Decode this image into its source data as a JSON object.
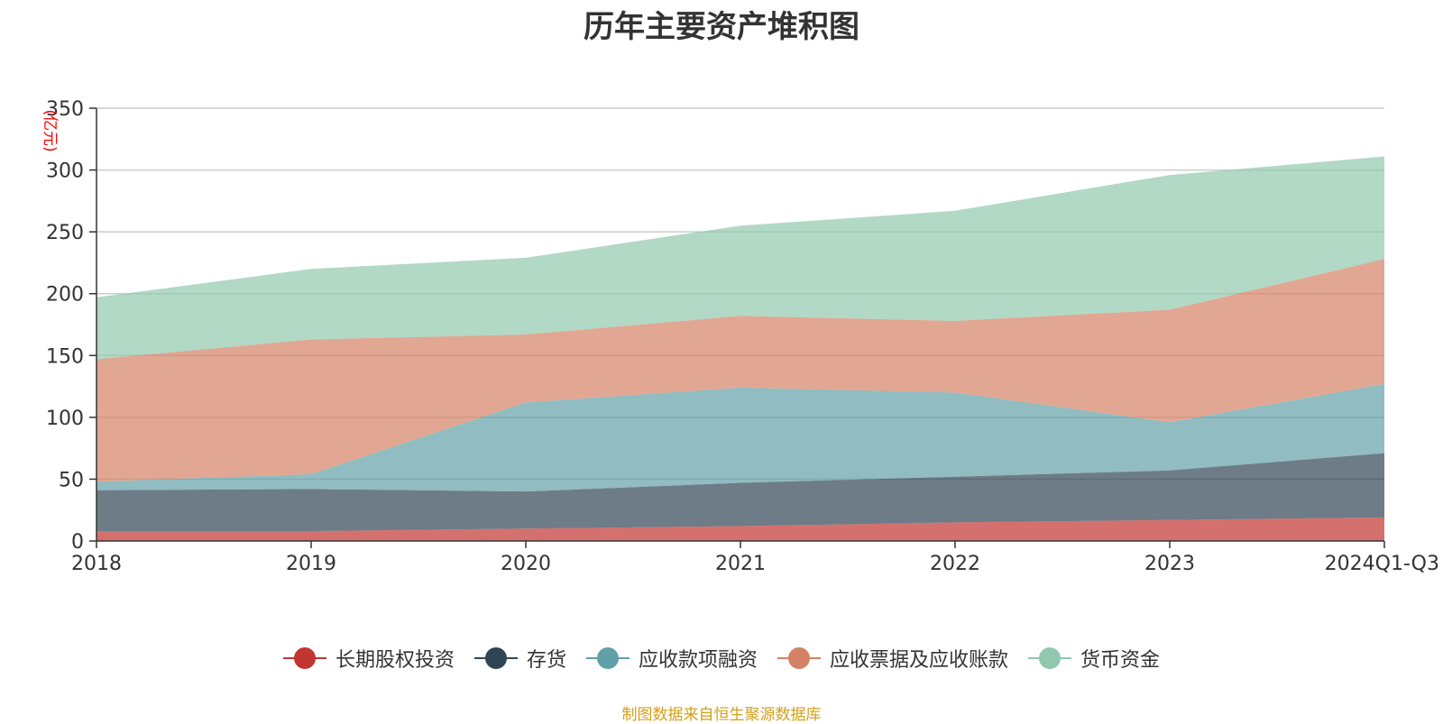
{
  "chart_data": {
    "type": "area",
    "title": "历年主要资产堆积图",
    "ylabel": "(亿元)",
    "xlabel": "",
    "categories": [
      "2018",
      "2019",
      "2020",
      "2021",
      "2022",
      "2023",
      "2024Q1-Q3"
    ],
    "ylim": [
      0,
      350
    ],
    "yticks": [
      0,
      50,
      100,
      150,
      200,
      250,
      300,
      350
    ],
    "stacked": true,
    "grid": true,
    "legend_position": "bottom",
    "series": [
      {
        "name": "长期股权投资",
        "color": "#c23531",
        "values": [
          8,
          8,
          10,
          12,
          15,
          17,
          19
        ]
      },
      {
        "name": "存货",
        "color": "#2f4554",
        "values": [
          33,
          34,
          30,
          35,
          37,
          40,
          52
        ]
      },
      {
        "name": "应收款项融资",
        "color": "#61a0a8",
        "values": [
          7,
          12,
          72,
          77,
          68,
          39,
          56
        ]
      },
      {
        "name": "应收票据及应收账款",
        "color": "#d48265",
        "values": [
          99,
          109,
          55,
          58,
          58,
          91,
          101
        ]
      },
      {
        "name": "货币资金",
        "color": "#91c7ae",
        "values": [
          50,
          57,
          62,
          73,
          89,
          109,
          83
        ]
      }
    ],
    "source_note": "制图数据来自恒生聚源数据库"
  }
}
